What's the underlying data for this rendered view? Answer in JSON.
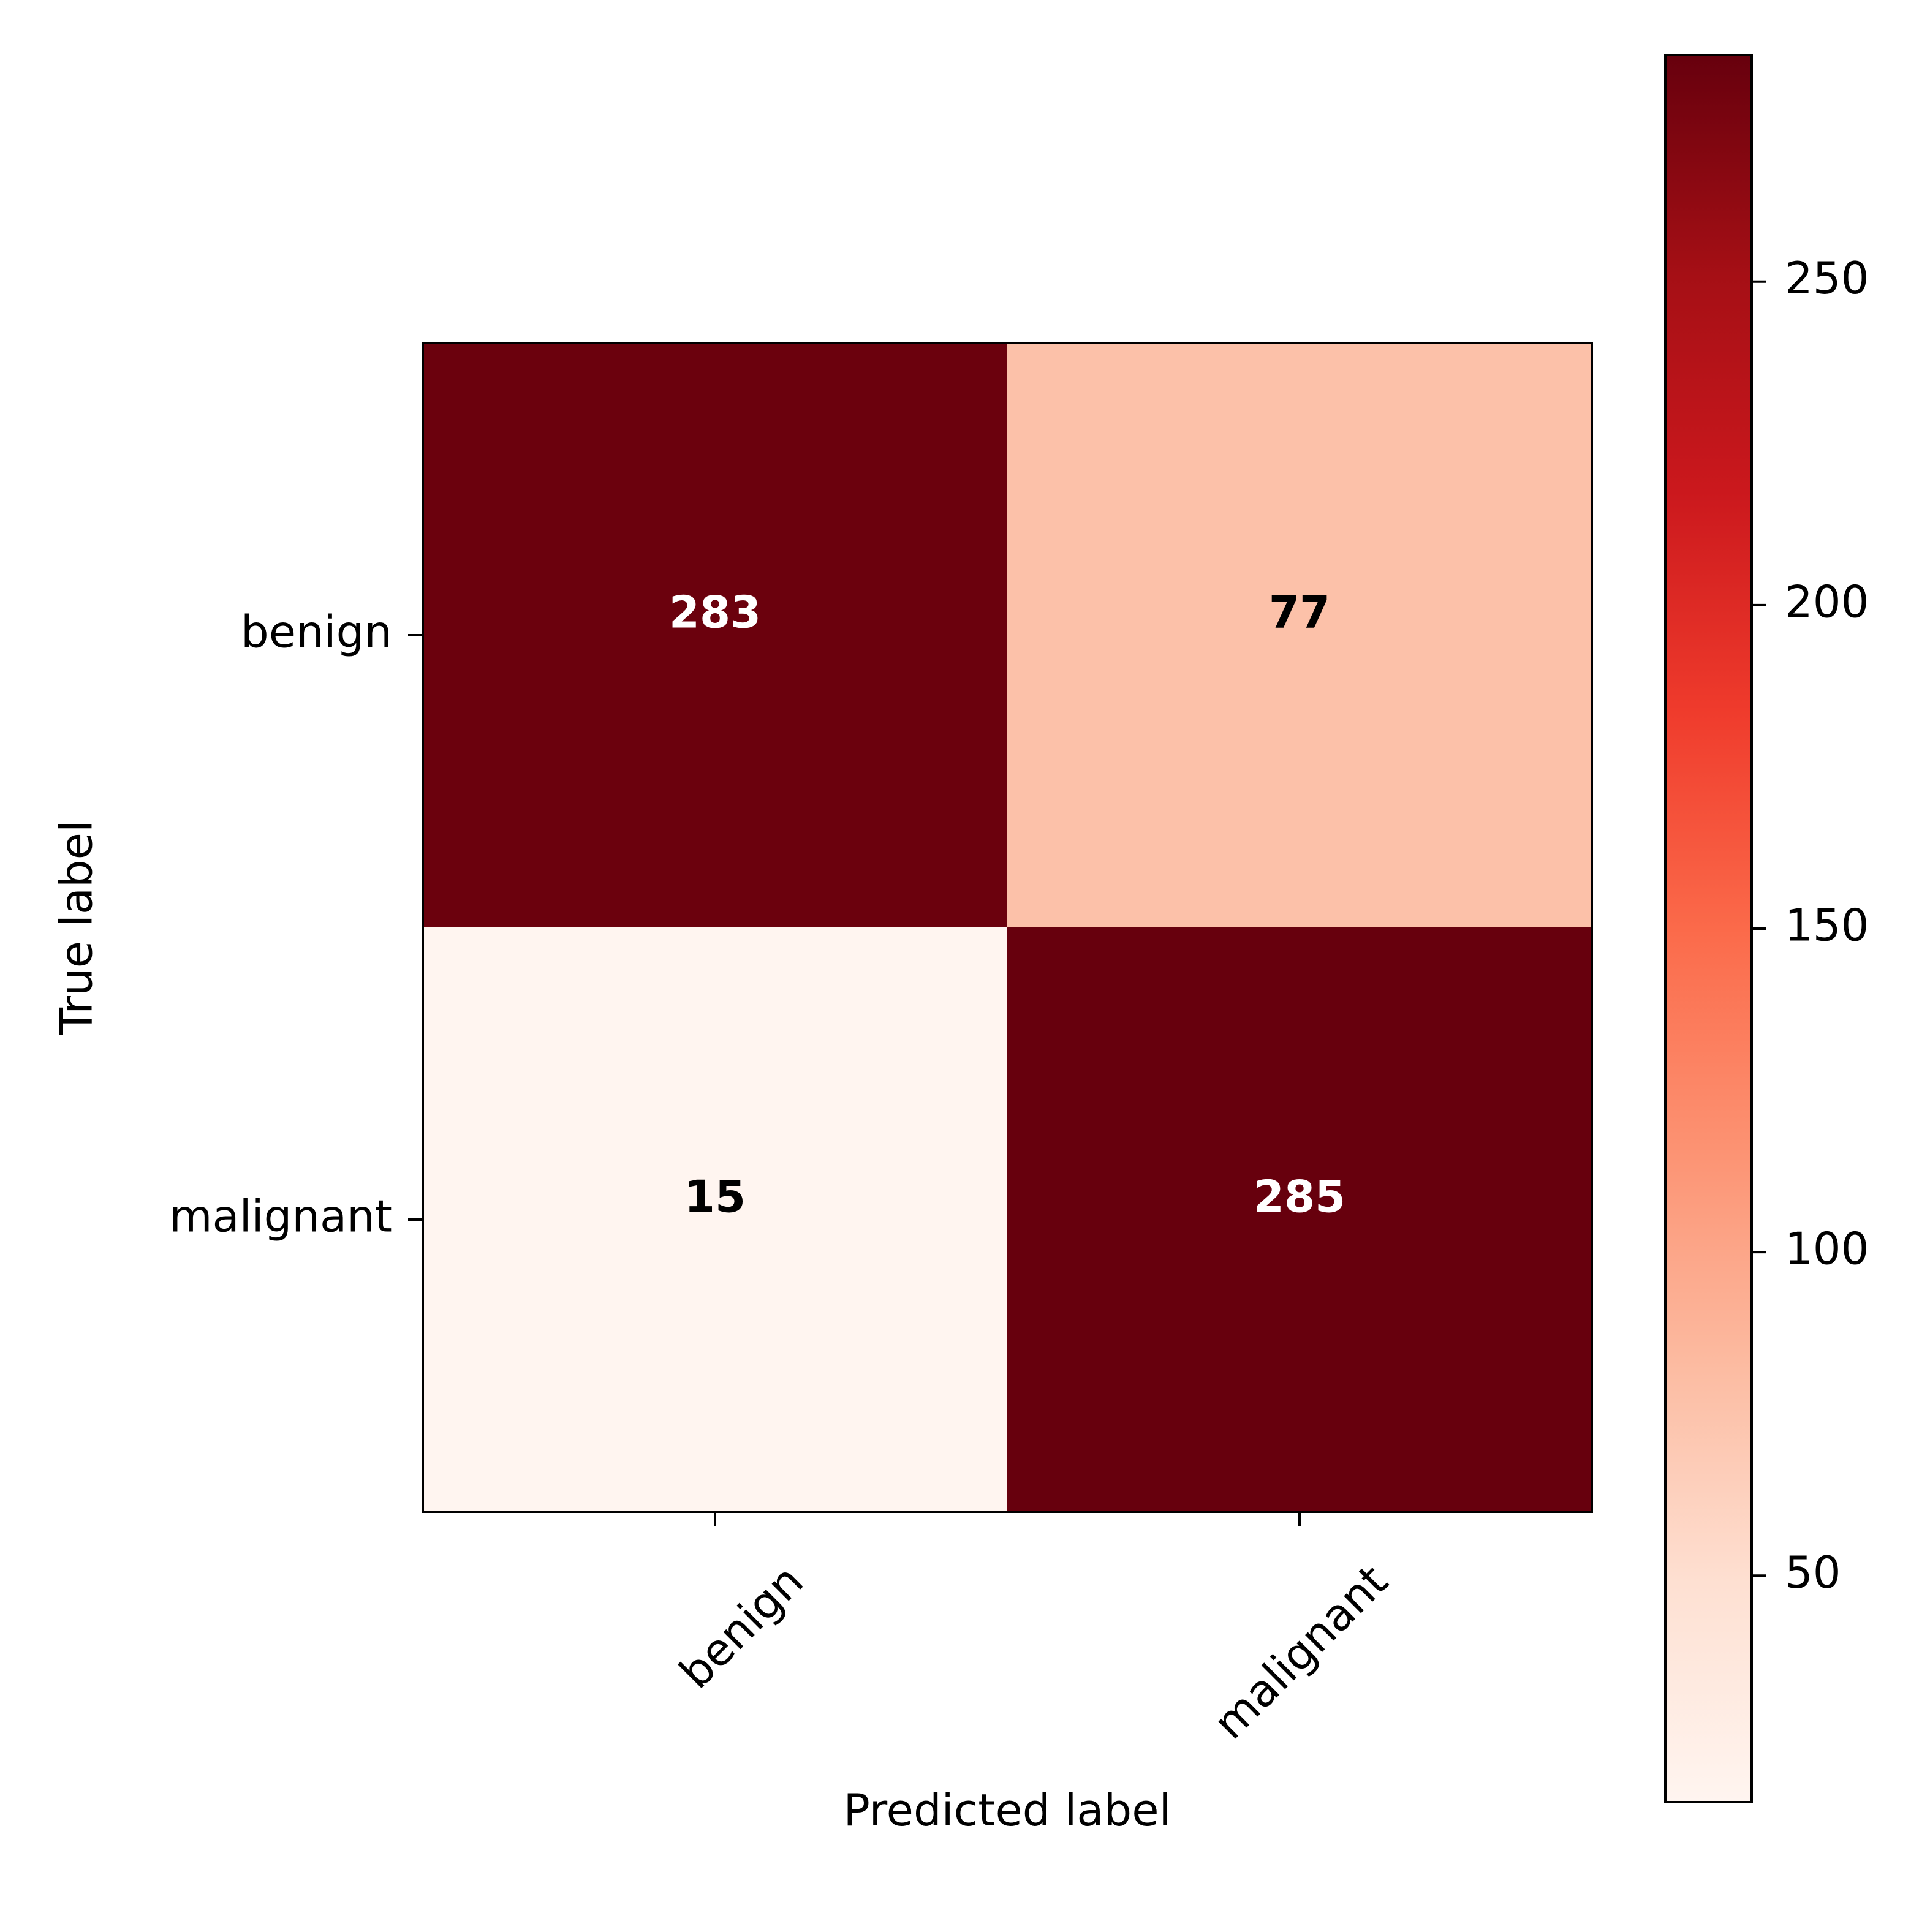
{
  "chart_data": {
    "type": "heatmap",
    "title": "",
    "xlabel": "Predicted label",
    "ylabel": "True label",
    "x_categories": [
      "benign",
      "malignant"
    ],
    "y_categories": [
      "benign",
      "malignant"
    ],
    "values": [
      [
        283,
        77
      ],
      [
        15,
        285
      ]
    ],
    "colormap": "Reds",
    "colorbar": {
      "range": [
        15,
        285
      ],
      "ticks": [
        50,
        100,
        150,
        200,
        250
      ],
      "tick_labels": [
        "50",
        "100",
        "150",
        "200",
        "250"
      ]
    },
    "x_tick_rotation": "45 degrees",
    "grid": false,
    "cell_value_text_colors": {
      "on_dark": "#ffffff",
      "on_light": "#000000"
    }
  }
}
